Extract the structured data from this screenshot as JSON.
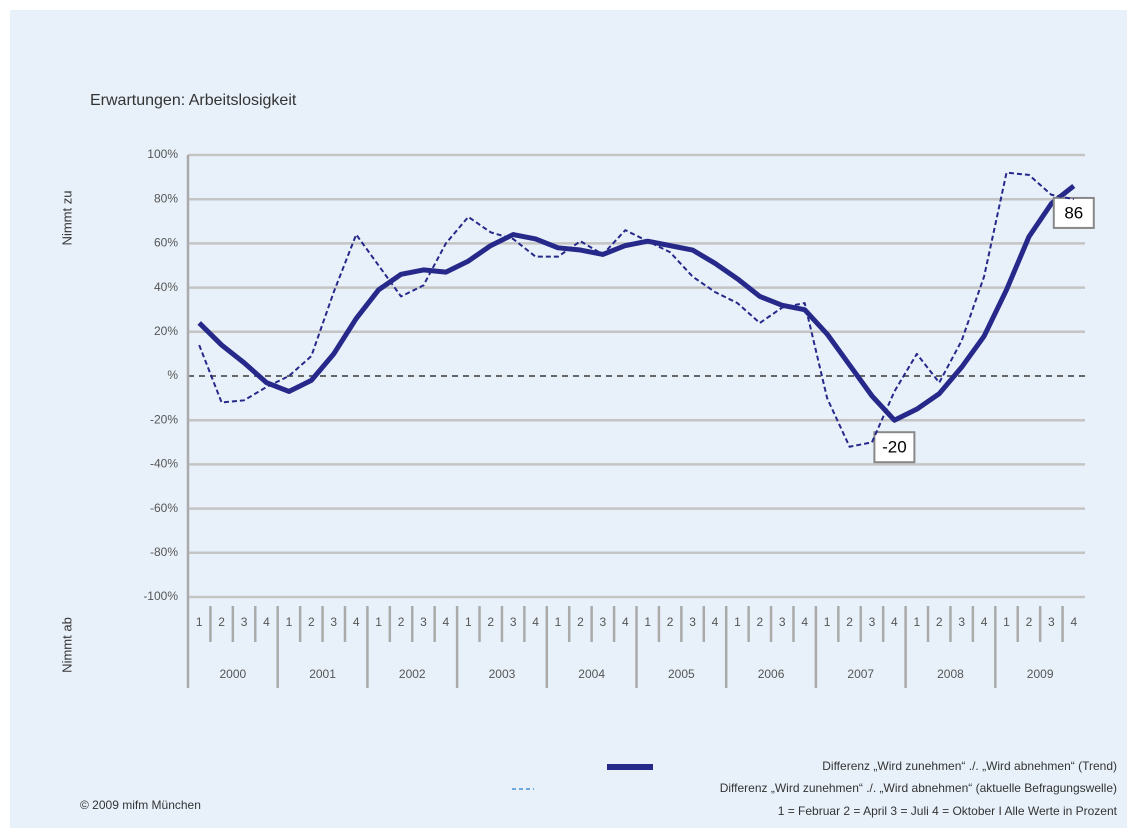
{
  "chart_data": {
    "type": "line",
    "title": "Erwartungen: Arbeitslosigkeit",
    "y_label_top": "Nimmt zu",
    "y_label_bottom": "Nimmt ab",
    "categories": [
      "1",
      "2",
      "3",
      "4",
      "1",
      "2",
      "3",
      "4",
      "1",
      "2",
      "3",
      "4",
      "1",
      "2",
      "3",
      "4",
      "1",
      "2",
      "3",
      "4",
      "1",
      "2",
      "3",
      "4",
      "1",
      "2",
      "3",
      "4",
      "1",
      "2",
      "3",
      "4",
      "1",
      "2",
      "3",
      "4",
      "1",
      "2",
      "3",
      "4"
    ],
    "years": [
      "2000",
      "2001",
      "2002",
      "2003",
      "2004",
      "2005",
      "2006",
      "2007",
      "2008",
      "2009"
    ],
    "series": [
      {
        "name": "Differenz „Wird zunehmen“ ./. „Wird abnehmen“ (Trend)",
        "color": "#27298a",
        "style": "solid",
        "values": [
          24,
          14,
          6,
          -3,
          -7,
          -2,
          10,
          26,
          39,
          46,
          48,
          47,
          52,
          59,
          64,
          62,
          58,
          57,
          55,
          59,
          61,
          59,
          57,
          51,
          44,
          36,
          32,
          30,
          19,
          5,
          -9,
          -20,
          -15,
          -8,
          4,
          18,
          39,
          63,
          78,
          86
        ],
        "value_labels": [
          null,
          null,
          null,
          null,
          null,
          null,
          null,
          null,
          null,
          null,
          null,
          null,
          null,
          null,
          null,
          null,
          null,
          null,
          null,
          null,
          null,
          null,
          null,
          null,
          null,
          null,
          null,
          null,
          null,
          null,
          null,
          "-20",
          null,
          null,
          null,
          null,
          null,
          null,
          null,
          "86"
        ]
      },
      {
        "name": "Differenz „Wird zunehmen“ ./. „Wird abnehmen“ (aktuelle Befragungswelle)",
        "color": "#27298a",
        "style": "dashed",
        "values": [
          14,
          -12,
          -11,
          -5,
          0,
          9,
          38,
          64,
          50,
          36,
          41,
          60,
          72,
          65,
          62,
          54,
          54,
          61,
          55,
          66,
          61,
          56,
          45,
          38,
          33,
          24,
          31,
          33,
          -10,
          -32,
          -30,
          -7,
          10,
          -3,
          16,
          45,
          92,
          91,
          82,
          80
        ]
      }
    ],
    "ylim": [
      -100,
      100
    ],
    "yticks": [
      {
        "value": -100,
        "label": "-100%"
      },
      {
        "value": -80,
        "label": "-80%"
      },
      {
        "value": -60,
        "label": "-60%"
      },
      {
        "value": -40,
        "label": "-40%"
      },
      {
        "value": -20,
        "label": "-20%"
      },
      {
        "value": 0,
        "label": "%"
      },
      {
        "value": 20,
        "label": "20%"
      },
      {
        "value": 40,
        "label": "40%"
      },
      {
        "value": 60,
        "label": "60%"
      },
      {
        "value": 80,
        "label": "80%"
      },
      {
        "value": 100,
        "label": "100%"
      }
    ],
    "grid": true,
    "footnote": "1 =  Februar  2 = April  3 = Juli  4 = Oktober  I  Alle Werte in Prozent",
    "copyright": "© 2009 mifm München"
  }
}
